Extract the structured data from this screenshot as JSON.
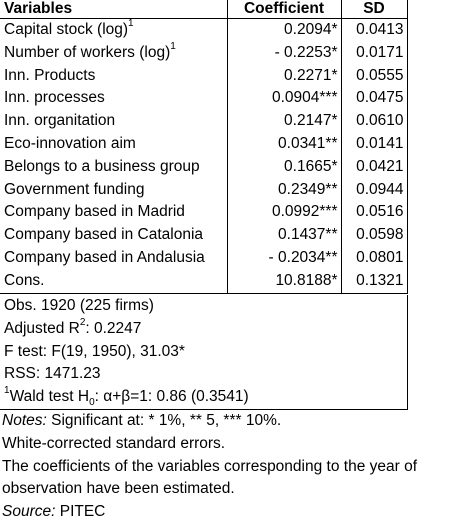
{
  "table": {
    "headers": {
      "variables": "Variables",
      "coefficient": "Coefficient",
      "sd": "SD"
    },
    "rows": [
      {
        "variable": "Capital stock (log)",
        "sup": "1",
        "coefficient": "0.2094*",
        "sd": "0.0413"
      },
      {
        "variable": "Number of workers (log)",
        "sup": "1",
        "coefficient": "- 0.2253*",
        "sd": "0.0171"
      },
      {
        "variable": "Inn. Products",
        "sup": "",
        "coefficient": "0.2271*",
        "sd": "0.0555"
      },
      {
        "variable": "Inn. processes",
        "sup": "",
        "coefficient": "0.0904***",
        "sd": "0.0475"
      },
      {
        "variable": "Inn. organitation",
        "sup": "",
        "coefficient": "0.2147*",
        "sd": "0.0610"
      },
      {
        "variable": "Eco-innovation aim",
        "sup": "",
        "coefficient": "0.0341**",
        "sd": "0.0141"
      },
      {
        "variable": "Belongs to a business group",
        "sup": "",
        "coefficient": "0.1665*",
        "sd": "0.0421"
      },
      {
        "variable": "Government funding",
        "sup": "",
        "coefficient": "0.2349**",
        "sd": "0.0944"
      },
      {
        "variable": "Company based in Madrid",
        "sup": "",
        "coefficient": "0.0992***",
        "sd": "0.0516"
      },
      {
        "variable": "Company based in Catalonia",
        "sup": "",
        "coefficient": "0.1437**",
        "sd": "0.0598"
      },
      {
        "variable": "Company based in Andalusia",
        "sup": "",
        "coefficient": "- 0.2034**",
        "sd": "0.0801"
      },
      {
        "variable": "Cons.",
        "sup": "",
        "coefficient": "10.8188*",
        "sd": "0.1321"
      }
    ]
  },
  "stats": {
    "obs": "Obs. 1920 (225 firms)",
    "adj_r2_prefix": "Adjusted R",
    "adj_r2_sup": "2",
    "adj_r2_suffix": ": 0.2247",
    "f_test": "F test: F(19, 1950), 31.03*",
    "rss": "RSS: 1471.23",
    "wald_sup": "1",
    "wald_prefix": "Wald test H",
    "wald_sub": "0",
    "wald_suffix": ": α+β=1: 0.86 (0.3541)"
  },
  "notes": {
    "notes_label": "Notes:",
    "notes_text": " Significant at: * 1%, ** 5, *** 10%.",
    "white": "White-corrected standard errors.",
    "coeff_line": "The coefficients of the variables corresponding to the year of observation have been estimated.",
    "source_label": "Source:",
    "source_text": " PITEC"
  }
}
